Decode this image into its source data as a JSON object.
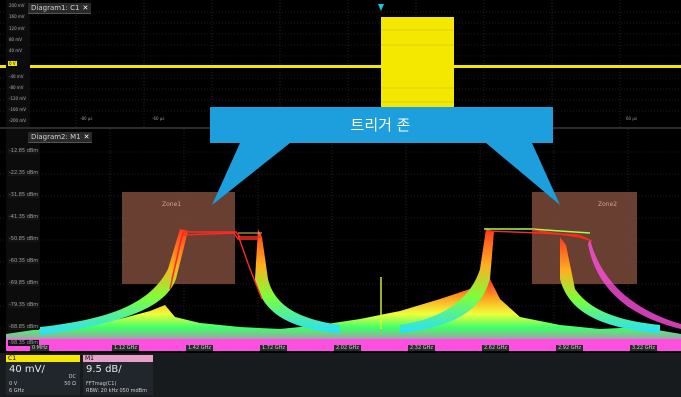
{
  "diagram1": {
    "tab_title": "Diagram1: C1",
    "close_glyph": "✕",
    "scale_labels": [
      "200 mV",
      "160 mV",
      "120 mV",
      "80 mV",
      "40 mV",
      "0 V",
      "-40 mV",
      "-80 mV",
      "-120 mV",
      "-160 mV",
      "-200 mV"
    ],
    "time_labels": [
      "-80 µs",
      "-60 µs",
      "60 µs"
    ]
  },
  "diagram2": {
    "tab_title": "Diagram2: M1",
    "close_glyph": "✕",
    "level_labels": [
      "-12.85 dBm",
      "-22.35 dBm",
      "-31.85 dBm",
      "-41.35 dBm",
      "-50.85 dBm",
      "-60.35 dBm",
      "-69.85 dBm",
      "-79.35 dBm",
      "-88.85 dBm",
      "-98.35 dBm"
    ],
    "freq_labels": [
      "0 MHz",
      "1.12 GHz",
      "1.42 GHz",
      "1.72 GHz",
      "2.02 GHz",
      "2.32 GHz",
      "2.62 GHz",
      "2.92 GHz",
      "3.22 GHz"
    ],
    "zones": [
      {
        "name": "Zone1"
      },
      {
        "name": "Zone2"
      }
    ]
  },
  "callout": {
    "text": "트리거 존"
  },
  "channels": [
    {
      "id": "C1",
      "scale": "40 mV/",
      "coupling": "DC",
      "offset": "0 V",
      "impedance": "50 Ω",
      "bandwidth": "6 GHz",
      "color": "#f5e800"
    },
    {
      "id": "M1",
      "scale": "9.5 dB/",
      "source": "FFTmag(C1)",
      "rbw": "RBW: 20 kHz 050 mdBm",
      "color": "#e8a0c8"
    }
  ],
  "colors": {
    "trace_yellow": "#f5e800",
    "zone_brown": "#7a4a38",
    "callout_blue": "#1c9fdc",
    "grid": "#3a3a3a"
  }
}
